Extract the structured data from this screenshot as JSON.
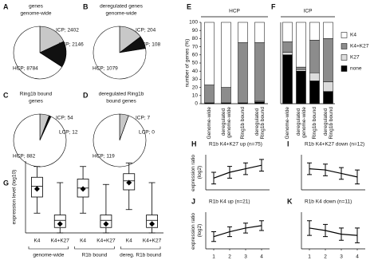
{
  "chart_data": [
    {
      "type": "pie",
      "label": "A",
      "title": [
        "genes",
        "genome-wide"
      ],
      "values": [
        2402,
        2146,
        8784
      ],
      "value_labels": [
        "ICP; 2402",
        "LCP; 2146",
        "HCP; 8784"
      ],
      "colors": [
        "#c8c8c8",
        "#111111",
        "#ffffff"
      ]
    },
    {
      "type": "pie",
      "label": "B",
      "title": [
        "deregulated genes",
        "genome-wide"
      ],
      "values": [
        204,
        108,
        1079
      ],
      "value_labels": [
        "ICP; 204",
        "LCP; 108",
        "HCP; 1079"
      ],
      "colors": [
        "#c8c8c8",
        "#111111",
        "#ffffff"
      ]
    },
    {
      "type": "pie",
      "label": "C",
      "title": [
        "Ring1b bound",
        "genes"
      ],
      "values": [
        54,
        12,
        882
      ],
      "value_labels": [
        "ICP; 54",
        "LCP; 12",
        "HCP; 882"
      ],
      "colors": [
        "#c8c8c8",
        "#111111",
        "#ffffff"
      ]
    },
    {
      "type": "pie",
      "label": "D",
      "title": [
        "deregulated Ring1b",
        "bound genes"
      ],
      "values": [
        7,
        0,
        119
      ],
      "value_labels": [
        "ICP; 7",
        "LCP; 0",
        "HCP; 119"
      ],
      "colors": [
        "#c8c8c8",
        "#111111",
        "#ffffff"
      ]
    },
    {
      "type": "stacked_bar",
      "label": "E",
      "title": "HCP",
      "ylabel": "number of genes (%)",
      "categories": [
        "Genome-wide",
        "deregulated genome-wide",
        "Ring1b bound",
        "deregulated Ring1b bound"
      ],
      "series": [
        {
          "color": "#ffffff",
          "values": [
            77,
            80,
            25,
            25
          ]
        },
        {
          "color": "#8c8c8c",
          "values": [
            22,
            19,
            74,
            72
          ]
        },
        {
          "color": "#dcdcdc",
          "values": [
            0,
            0,
            0,
            1
          ]
        },
        {
          "color": "#000000",
          "values": [
            1,
            1,
            1,
            2
          ]
        }
      ],
      "ylim": [
        0,
        100
      ],
      "yticks": [
        0,
        10,
        20,
        30,
        40,
        50,
        60,
        70,
        80,
        90,
        100
      ]
    },
    {
      "type": "stacked_bar",
      "label": "F",
      "title": "ICP",
      "categories": [
        "Genome-wide",
        "deregulated genome-wide",
        "Ring1b bound",
        "deregulated Ring1b bound"
      ],
      "series": [
        {
          "name": "K4",
          "color": "#ffffff",
          "values": [
            24,
            55,
            22,
            20
          ]
        },
        {
          "name": "K4+K27",
          "color": "#8c8c8c",
          "values": [
            13,
            3,
            40,
            53
          ]
        },
        {
          "name": "K27",
          "color": "#dcdcdc",
          "values": [
            3,
            2,
            10,
            12
          ]
        },
        {
          "name": "none",
          "color": "#000000",
          "values": [
            60,
            40,
            28,
            15
          ]
        }
      ],
      "ylim": [
        0,
        100
      ]
    },
    {
      "type": "box",
      "label": "G",
      "ylabel": "expression level (log10)",
      "ylim": [
        0,
        4
      ],
      "categories": [
        "K4",
        "K4+K27",
        "K4",
        "K4+K27",
        "K4",
        "K4+K27"
      ],
      "groups": [
        "genome-wide",
        "R1b bound",
        "dereg. R1b bound"
      ],
      "boxes": [
        {
          "whislo": 1.1,
          "q1": 2.0,
          "med": 2.6,
          "q3": 3.1,
          "whishi": 3.7,
          "mean": 2.45
        },
        {
          "whislo": 0.0,
          "q1": 0.3,
          "med": 0.7,
          "q3": 1.0,
          "whishi": 2.8,
          "mean": 0.5
        },
        {
          "whislo": 1.1,
          "q1": 2.0,
          "med": 2.5,
          "q3": 3.0,
          "whishi": 3.7,
          "mean": 2.45
        },
        {
          "whislo": 0.0,
          "q1": 0.3,
          "med": 0.7,
          "q3": 1.0,
          "whishi": 2.7,
          "mean": 0.5
        },
        {
          "whislo": 1.3,
          "q1": 2.4,
          "med": 2.9,
          "q3": 3.3,
          "whishi": 3.9,
          "mean": 2.8
        },
        {
          "whislo": 0.0,
          "q1": 0.3,
          "med": 0.7,
          "q3": 1.0,
          "whishi": 2.8,
          "mean": 0.5
        }
      ]
    },
    {
      "type": "line",
      "label": "H",
      "title": "R1b K4+K27 up (n=75)",
      "ylabel": "expression ratio (log2)",
      "x": [
        1,
        2,
        3,
        4
      ],
      "values": [
        -0.5,
        0.0,
        0.3,
        0.6
      ],
      "errors": [
        0.5,
        0.5,
        0.5,
        0.5
      ],
      "xlim": [
        0.5,
        4.5
      ],
      "ylim": [
        -1.5,
        1.5
      ]
    },
    {
      "type": "line",
      "label": "I",
      "title": "R1b K4+K27 down (n=12)",
      "x": [
        1,
        2,
        3,
        4
      ],
      "values": [
        0.3,
        0.2,
        -0.1,
        -0.4
      ],
      "errors": [
        0.5,
        0.5,
        0.5,
        0.6
      ],
      "xlim": [
        0.5,
        4.5
      ],
      "ylim": [
        -1.5,
        1.5
      ]
    },
    {
      "type": "line",
      "label": "J",
      "title": "R1b K4 up (n=21)",
      "ylabel": "expression ratio (log2)",
      "x": [
        1,
        2,
        3,
        4
      ],
      "values": [
        -0.5,
        -0.1,
        0.2,
        0.4
      ],
      "errors": [
        0.4,
        0.4,
        0.4,
        0.4
      ],
      "xlim": [
        0.5,
        4.5
      ],
      "ylim": [
        -1.5,
        1.5
      ],
      "xticks": [
        1,
        2,
        3,
        4
      ]
    },
    {
      "type": "line",
      "label": "K",
      "title": "R1b K4 down (n=11)",
      "x": [
        1,
        2,
        3,
        4
      ],
      "values": [
        0.2,
        0.0,
        -0.3,
        -0.4
      ],
      "errors": [
        0.6,
        0.5,
        0.5,
        0.6
      ],
      "xlim": [
        0.5,
        4.5
      ],
      "ylim": [
        -1.5,
        1.5
      ],
      "xticks": [
        1,
        2,
        3,
        4
      ]
    }
  ]
}
